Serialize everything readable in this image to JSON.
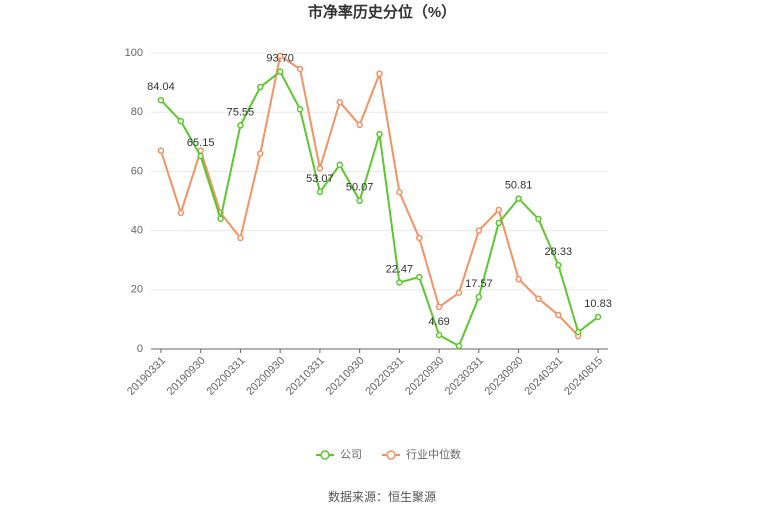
{
  "chart_data": {
    "type": "line",
    "title": "市净率历史分位（%）",
    "categories": [
      "20190331",
      null,
      "20190930",
      null,
      "20200331",
      null,
      "20200930",
      null,
      "20210331",
      null,
      "20210930",
      null,
      "20220331",
      null,
      "20220930",
      null,
      "20230331",
      null,
      "20230930",
      null,
      "20240331",
      null,
      "20240815"
    ],
    "series": [
      {
        "name": "公司",
        "color": "#5cc72f",
        "values": [
          84.04,
          77,
          65.15,
          44,
          75.55,
          88.5,
          93.7,
          81,
          53.07,
          62.2,
          50.07,
          72.6,
          22.47,
          24.3,
          4.69,
          1,
          17.57,
          42.6,
          50.81,
          43.9,
          28.33,
          5.7,
          10.83
        ],
        "value_labels": [
          "84.04",
          null,
          "65.15",
          null,
          "75.55",
          null,
          "93.70",
          null,
          "53.07",
          null,
          "50.07",
          null,
          "22.47",
          null,
          "4.69",
          null,
          "17.57",
          null,
          "50.81",
          null,
          "28.33",
          null,
          "10.83"
        ]
      },
      {
        "name": "行业中位数",
        "color": "#f39263",
        "values": [
          67,
          46,
          67,
          46,
          37.5,
          66,
          99,
          94.6,
          61,
          83.4,
          75.7,
          93,
          53,
          37.5,
          14.2,
          19,
          40,
          47,
          23.6,
          17,
          11.5,
          4.4,
          null
        ]
      }
    ],
    "ylim": [
      0,
      100
    ],
    "yticks": [
      0,
      20,
      40,
      60,
      80,
      100
    ],
    "grid": true,
    "legend": "bottom",
    "source": "数据来源：恒生聚源"
  }
}
